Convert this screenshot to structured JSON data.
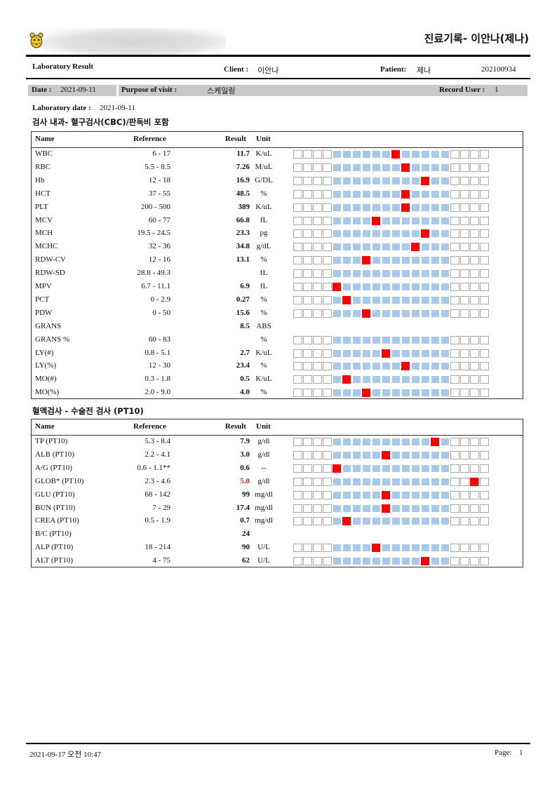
{
  "header": {
    "doc_title": "진료기록- 이안나(제나)",
    "report_title": "Laboratory Result",
    "client_label": "Client :",
    "client_value": "이안나",
    "patient_label": "Patient:",
    "patient_value": "제나",
    "patient_id": "202100934",
    "logo_icon": "cheetah-logo-icon"
  },
  "visit": {
    "date_label": "Date :",
    "date_value": "2021-09-11",
    "purpose_label": "Purpose of visit :",
    "purpose_value": "스케일링",
    "record_user_label": "Record User :",
    "record_user_value": "1"
  },
  "lab_date_label": "Laboratory date :",
  "lab_date_value": "2021-09-11",
  "columns": {
    "name": "Name",
    "reference": "Reference",
    "result": "Result",
    "unit": "Unit"
  },
  "colors": {
    "in_range": "#a9c9ec",
    "marker": "#ff0000",
    "abnormal_text": "#d42020"
  },
  "sections": [
    {
      "title": "검사 내과- 혈구검사(CBC)/판독비 포함",
      "rows": [
        {
          "name": "WBC",
          "ref": "6 - 17",
          "result": "11.7",
          "unit": "K/uL",
          "gauge": true,
          "marker": 10
        },
        {
          "name": "RBC",
          "ref": "5.5 - 8.5",
          "result": "7.26",
          "unit": "M/uL",
          "gauge": true,
          "marker": 11
        },
        {
          "name": "Hb",
          "ref": "12 - 18",
          "result": "16.9",
          "unit": "G/DL",
          "gauge": true,
          "marker": 13
        },
        {
          "name": "HCT",
          "ref": "37 - 55",
          "result": "48.5",
          "unit": "%",
          "gauge": true,
          "marker": 11
        },
        {
          "name": "PLT",
          "ref": "200 - 500",
          "result": "389",
          "unit": "K/uL",
          "gauge": true,
          "marker": 11
        },
        {
          "name": "MCV",
          "ref": "60 - 77",
          "result": "66.8",
          "unit": "fL",
          "gauge": true,
          "marker": 8
        },
        {
          "name": "MCH",
          "ref": "19.5 - 24.5",
          "result": "23.3",
          "unit": "pg",
          "gauge": true,
          "marker": 13
        },
        {
          "name": "MCHC",
          "ref": "32 - 36",
          "result": "34.8",
          "unit": "g/dL",
          "gauge": true,
          "marker": 12
        },
        {
          "name": "RDW-CV",
          "ref": "12 - 16",
          "result": "13.1",
          "unit": "%",
          "gauge": true,
          "marker": 7
        },
        {
          "name": "RDW-SD",
          "ref": "28.8 - 49.3",
          "result": "",
          "unit": "fL",
          "gauge": true,
          "marker": null
        },
        {
          "name": "MPV",
          "ref": "6.7 - 11.1",
          "result": "6.9",
          "unit": "fL",
          "gauge": true,
          "marker": 4
        },
        {
          "name": "PCT",
          "ref": "0 - 2.9",
          "result": "0.27",
          "unit": "%",
          "gauge": true,
          "marker": 5
        },
        {
          "name": "PDW",
          "ref": "0 - 50",
          "result": "15.6",
          "unit": "%",
          "gauge": true,
          "marker": 7
        },
        {
          "name": "GRANS",
          "ref": "",
          "result": "8.5",
          "unit": "ABS",
          "gauge": false,
          "marker": null
        },
        {
          "name": "GRANS %",
          "ref": "60 - 83",
          "result": "",
          "unit": "%",
          "gauge": true,
          "marker": null
        },
        {
          "name": "LY(#)",
          "ref": "0.8 - 5.1",
          "result": "2.7",
          "unit": "K/uL",
          "gauge": true,
          "marker": 9
        },
        {
          "name": "LY(%)",
          "ref": "12 - 30",
          "result": "23.4",
          "unit": "%",
          "gauge": true,
          "marker": 11
        },
        {
          "name": "MO(#)",
          "ref": "0.3 - 1.8",
          "result": "0.5",
          "unit": "K/uL",
          "gauge": true,
          "marker": 5
        },
        {
          "name": "MO(%)",
          "ref": "2.0 - 9.0",
          "result": "4.0",
          "unit": "%",
          "gauge": true,
          "marker": 7
        }
      ]
    },
    {
      "title": "혈액검사 - 수술전 검사 (PT10)",
      "rows": [
        {
          "name": "TP (PT10)",
          "ref": "5.3 - 8.4",
          "result": "7.9",
          "unit": "g/dl",
          "gauge": true,
          "marker": 14
        },
        {
          "name": "ALB (PT10)",
          "ref": "2.2 - 4.1",
          "result": "3.0",
          "unit": "g/dl",
          "gauge": true,
          "marker": 9
        },
        {
          "name": "A/G (PT10)",
          "ref": "0.6 - 1.1**",
          "result": "0.6",
          "unit": "--",
          "gauge": true,
          "marker": 4
        },
        {
          "name": "GLOB* (PT10)",
          "ref": "2.3 - 4.6",
          "result": "5.0",
          "unit": "g/dl",
          "gauge": true,
          "marker": 18,
          "abnormal": true
        },
        {
          "name": "GLU (PT10)",
          "ref": "68 - 142",
          "result": "99",
          "unit": "mg/dl",
          "gauge": true,
          "marker": 9
        },
        {
          "name": "BUN (PT10)",
          "ref": "7 - 29",
          "result": "17.4",
          "unit": "mg/dl",
          "gauge": true,
          "marker": 9
        },
        {
          "name": "CREA (PT10)",
          "ref": "0.5 - 1.9",
          "result": "0.7",
          "unit": "mg/dl",
          "gauge": true,
          "marker": 5
        },
        {
          "name": "B/C (PT10)",
          "ref": "",
          "result": "24",
          "unit": "",
          "gauge": false,
          "marker": null
        },
        {
          "name": "ALP (PT10)",
          "ref": "18 - 214",
          "result": "90",
          "unit": "U/L",
          "gauge": true,
          "marker": 8
        },
        {
          "name": "ALT (PT10)",
          "ref": "4 - 75",
          "result": "62",
          "unit": "U/L",
          "gauge": true,
          "marker": 13
        }
      ]
    }
  ],
  "footer": {
    "printed_at": "2021-09-17 오전 10:47",
    "page_label": "Page:",
    "page_number": "1"
  }
}
